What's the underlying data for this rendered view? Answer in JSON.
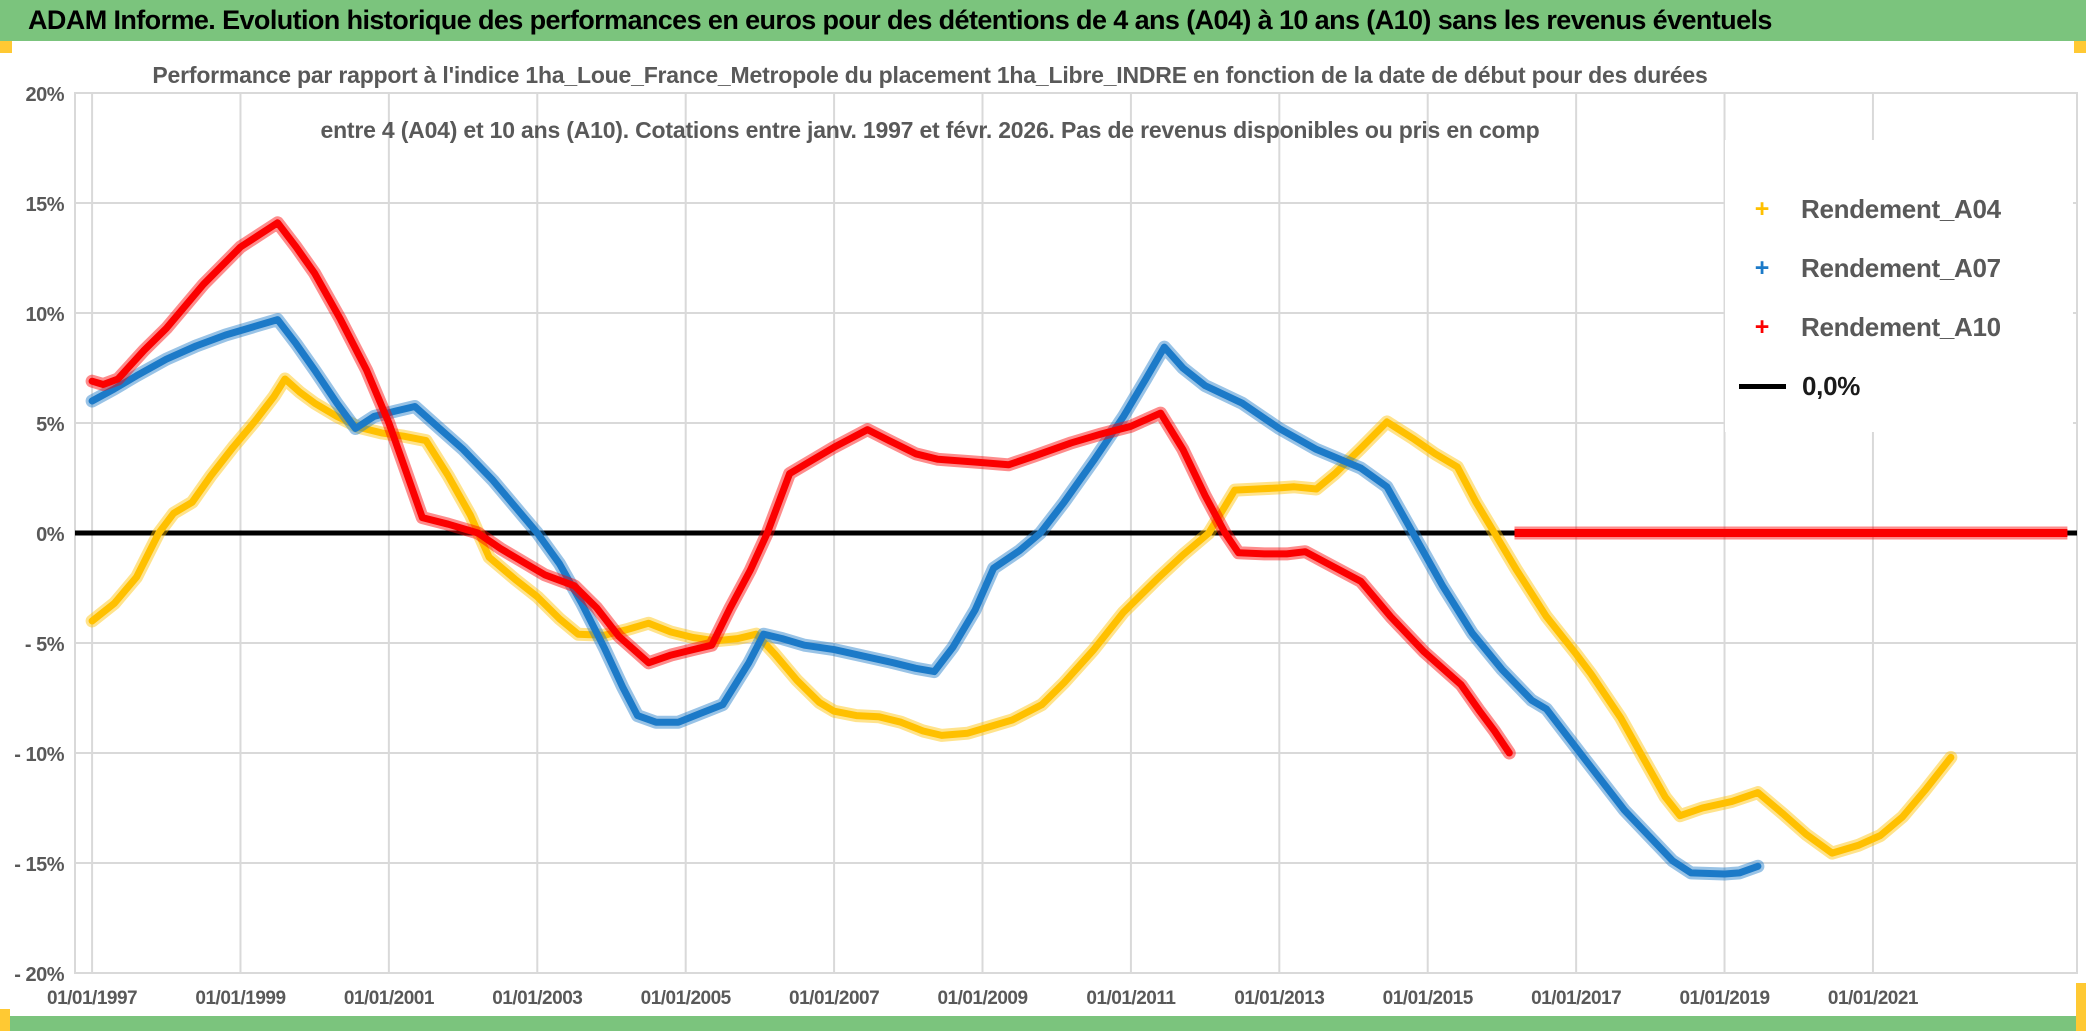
{
  "header": {
    "title": "ADAM Informe. Evolution historique des performances en euros pour des détentions de 4 ans (A04) à 10 ans (A10) sans les revenus éventuels"
  },
  "colors": {
    "header_bg": "#7BC47D",
    "accent_yellow": "#FFC933",
    "grid": "#D9D9D9",
    "axis_text": "#595959",
    "title_text": "#595959",
    "series_a04": "#FFC000",
    "series_a07": "#1C7AC8",
    "series_a10": "#FB0000",
    "zero_line": "#000000",
    "plot_bg": "#FFFFFF"
  },
  "chart_data": {
    "type": "line",
    "title_line1": "Performance par rapport à l'indice 1ha_Loue_France_Metropole  du placement 1ha_Libre_INDRE en fonction de la date de début pour des durées",
    "title_line2": "entre 4 (A04) et 10 ans (A10). Cotations entre janv. 1997 et févr. 2026. Pas de revenus disponibles ou pris en comp",
    "xlabel": "",
    "ylabel": "",
    "xlim": [
      1996.77,
      2023.75
    ],
    "ylim": [
      -20,
      20
    ],
    "grid": true,
    "legend_position": "upper-right",
    "x_tick_years": [
      1997,
      1999,
      2001,
      2003,
      2005,
      2007,
      2009,
      2011,
      2013,
      2015,
      2017,
      2019,
      2021
    ],
    "x_tick_labels": [
      "01/01/1997",
      "01/01/1999",
      "01/01/2001",
      "01/01/2003",
      "01/01/2005",
      "01/01/2007",
      "01/01/2009",
      "01/01/2011",
      "01/01/2013",
      "01/01/2015",
      "01/01/2017",
      "01/01/2019",
      "01/01/2021"
    ],
    "y_ticks": [
      {
        "value": 20,
        "label": "20%"
      },
      {
        "value": 15,
        "label": "15%"
      },
      {
        "value": 10,
        "label": "10%"
      },
      {
        "value": 5,
        "label": "5%"
      },
      {
        "value": 0,
        "label": "0%"
      },
      {
        "value": -5,
        "label": "- 5%"
      },
      {
        "value": -10,
        "label": "- 10%"
      },
      {
        "value": -15,
        "label": "- 15%"
      },
      {
        "value": -20,
        "label": "- 20%"
      }
    ],
    "zero_reference_line": {
      "label": "0,0%",
      "value": 0,
      "color": "#000000"
    },
    "legend": {
      "items": [
        {
          "label": "Rendement_A04",
          "marker": "plus",
          "color": "#FFC000"
        },
        {
          "label": "Rendement_A07",
          "marker": "plus",
          "color": "#1C7AC8"
        },
        {
          "label": "Rendement_A10",
          "marker": "plus",
          "color": "#FB0000"
        },
        {
          "label": "0,0%",
          "marker": "line",
          "color": "#000000"
        }
      ]
    },
    "series": [
      {
        "name": "Rendement_A04",
        "color": "#FFC000",
        "zero_segment": null,
        "points": [
          [
            1997.0,
            -4.0
          ],
          [
            1997.3,
            -3.2
          ],
          [
            1997.6,
            -2.0
          ],
          [
            1997.9,
            0.0
          ],
          [
            1998.1,
            0.9
          ],
          [
            1998.35,
            1.4
          ],
          [
            1998.6,
            2.6
          ],
          [
            1998.9,
            3.9
          ],
          [
            1999.2,
            5.1
          ],
          [
            1999.45,
            6.2
          ],
          [
            1999.6,
            7.0
          ],
          [
            1999.8,
            6.4
          ],
          [
            2000.0,
            5.9
          ],
          [
            2000.3,
            5.3
          ],
          [
            2000.6,
            4.8
          ],
          [
            2000.9,
            4.55
          ],
          [
            2001.2,
            4.4
          ],
          [
            2001.5,
            4.2
          ],
          [
            2001.8,
            2.6
          ],
          [
            2002.1,
            0.8
          ],
          [
            2002.35,
            -1.1
          ],
          [
            2002.7,
            -2.1
          ],
          [
            2003.0,
            -2.9
          ],
          [
            2003.3,
            -3.9
          ],
          [
            2003.55,
            -4.6
          ],
          [
            2003.9,
            -4.65
          ],
          [
            2004.2,
            -4.4
          ],
          [
            2004.5,
            -4.1
          ],
          [
            2004.8,
            -4.5
          ],
          [
            2005.1,
            -4.75
          ],
          [
            2005.4,
            -4.9
          ],
          [
            2005.7,
            -4.8
          ],
          [
            2005.95,
            -4.6
          ],
          [
            2006.2,
            -5.5
          ],
          [
            2006.5,
            -6.7
          ],
          [
            2006.8,
            -7.7
          ],
          [
            2007.0,
            -8.1
          ],
          [
            2007.3,
            -8.3
          ],
          [
            2007.6,
            -8.35
          ],
          [
            2007.9,
            -8.6
          ],
          [
            2008.2,
            -9.0
          ],
          [
            2008.45,
            -9.2
          ],
          [
            2008.8,
            -9.1
          ],
          [
            2009.1,
            -8.8
          ],
          [
            2009.4,
            -8.5
          ],
          [
            2009.8,
            -7.8
          ],
          [
            2010.1,
            -6.8
          ],
          [
            2010.5,
            -5.3
          ],
          [
            2010.9,
            -3.6
          ],
          [
            2011.35,
            -2.1
          ],
          [
            2011.7,
            -1.0
          ],
          [
            2012.05,
            0.0
          ],
          [
            2012.4,
            1.95
          ],
          [
            2012.7,
            2.0
          ],
          [
            2013.0,
            2.05
          ],
          [
            2013.2,
            2.1
          ],
          [
            2013.5,
            2.0
          ],
          [
            2013.75,
            2.7
          ],
          [
            2014.1,
            3.85
          ],
          [
            2014.45,
            5.05
          ],
          [
            2014.8,
            4.3
          ],
          [
            2015.1,
            3.6
          ],
          [
            2015.4,
            3.0
          ],
          [
            2015.65,
            1.4
          ],
          [
            2015.9,
            0.0
          ],
          [
            2016.2,
            -1.7
          ],
          [
            2016.6,
            -3.8
          ],
          [
            2017.0,
            -5.5
          ],
          [
            2017.2,
            -6.4
          ],
          [
            2017.6,
            -8.4
          ],
          [
            2017.9,
            -10.2
          ],
          [
            2018.2,
            -12.0
          ],
          [
            2018.4,
            -12.85
          ],
          [
            2018.7,
            -12.5
          ],
          [
            2019.1,
            -12.2
          ],
          [
            2019.45,
            -11.8
          ],
          [
            2019.8,
            -12.8
          ],
          [
            2020.1,
            -13.7
          ],
          [
            2020.45,
            -14.55
          ],
          [
            2020.8,
            -14.2
          ],
          [
            2021.1,
            -13.75
          ],
          [
            2021.4,
            -12.9
          ],
          [
            2021.7,
            -11.7
          ],
          [
            2022.05,
            -10.2
          ]
        ]
      },
      {
        "name": "Rendement_A07",
        "color": "#1C7AC8",
        "zero_segment": null,
        "points": [
          [
            1997.0,
            6.0
          ],
          [
            1997.3,
            6.55
          ],
          [
            1997.6,
            7.15
          ],
          [
            1998.0,
            7.9
          ],
          [
            1998.4,
            8.5
          ],
          [
            1998.8,
            9.0
          ],
          [
            1999.2,
            9.4
          ],
          [
            1999.5,
            9.7
          ],
          [
            1999.75,
            8.6
          ],
          [
            2000.0,
            7.4
          ],
          [
            2000.3,
            5.9
          ],
          [
            2000.55,
            4.75
          ],
          [
            2000.8,
            5.3
          ],
          [
            2001.1,
            5.55
          ],
          [
            2001.35,
            5.75
          ],
          [
            2001.7,
            4.7
          ],
          [
            2002.0,
            3.8
          ],
          [
            2002.4,
            2.4
          ],
          [
            2002.8,
            0.8
          ],
          [
            2003.0,
            0.0
          ],
          [
            2003.3,
            -1.4
          ],
          [
            2003.6,
            -3.2
          ],
          [
            2003.9,
            -5.2
          ],
          [
            2004.15,
            -7.0
          ],
          [
            2004.35,
            -8.3
          ],
          [
            2004.6,
            -8.6
          ],
          [
            2004.9,
            -8.6
          ],
          [
            2005.2,
            -8.2
          ],
          [
            2005.5,
            -7.8
          ],
          [
            2005.85,
            -5.9
          ],
          [
            2006.05,
            -4.6
          ],
          [
            2006.3,
            -4.8
          ],
          [
            2006.6,
            -5.1
          ],
          [
            2007.0,
            -5.3
          ],
          [
            2007.4,
            -5.6
          ],
          [
            2007.8,
            -5.9
          ],
          [
            2008.1,
            -6.15
          ],
          [
            2008.35,
            -6.3
          ],
          [
            2008.6,
            -5.2
          ],
          [
            2008.9,
            -3.5
          ],
          [
            2009.15,
            -1.6
          ],
          [
            2009.5,
            -0.8
          ],
          [
            2009.78,
            0.0
          ],
          [
            2010.1,
            1.4
          ],
          [
            2010.5,
            3.3
          ],
          [
            2010.9,
            5.3
          ],
          [
            2011.2,
            7.0
          ],
          [
            2011.45,
            8.45
          ],
          [
            2011.7,
            7.5
          ],
          [
            2012.0,
            6.7
          ],
          [
            2012.5,
            5.9
          ],
          [
            2013.0,
            4.75
          ],
          [
            2013.5,
            3.8
          ],
          [
            2014.1,
            2.95
          ],
          [
            2014.45,
            2.1
          ],
          [
            2014.8,
            0.0
          ],
          [
            2015.2,
            -2.4
          ],
          [
            2015.6,
            -4.55
          ],
          [
            2016.0,
            -6.2
          ],
          [
            2016.4,
            -7.6
          ],
          [
            2016.6,
            -8.0
          ],
          [
            2017.1,
            -10.2
          ],
          [
            2017.65,
            -12.6
          ],
          [
            2018.3,
            -14.9
          ],
          [
            2018.55,
            -15.45
          ],
          [
            2019.0,
            -15.5
          ],
          [
            2019.2,
            -15.45
          ],
          [
            2019.45,
            -15.15
          ]
        ]
      },
      {
        "name": "Rendement_A10",
        "color": "#FB0000",
        "zero_segment": [
          2016.17,
          2023.62
        ],
        "points": [
          [
            1997.0,
            6.9
          ],
          [
            1997.15,
            6.75
          ],
          [
            1997.35,
            7.0
          ],
          [
            1997.7,
            8.3
          ],
          [
            1998.0,
            9.3
          ],
          [
            1998.5,
            11.3
          ],
          [
            1999.0,
            13.0
          ],
          [
            1999.5,
            14.1
          ],
          [
            1999.75,
            13.0
          ],
          [
            2000.0,
            11.8
          ],
          [
            2000.35,
            9.7
          ],
          [
            2000.7,
            7.4
          ],
          [
            2001.0,
            5.0
          ],
          [
            2001.2,
            3.1
          ],
          [
            2001.45,
            0.7
          ],
          [
            2001.8,
            0.4
          ],
          [
            2002.2,
            0.0
          ],
          [
            2002.5,
            -0.7
          ],
          [
            2002.8,
            -1.3
          ],
          [
            2003.1,
            -1.9
          ],
          [
            2003.5,
            -2.4
          ],
          [
            2003.8,
            -3.4
          ],
          [
            2004.1,
            -4.7
          ],
          [
            2004.5,
            -5.9
          ],
          [
            2004.8,
            -5.55
          ],
          [
            2005.1,
            -5.3
          ],
          [
            2005.35,
            -5.1
          ],
          [
            2005.6,
            -3.4
          ],
          [
            2005.87,
            -1.7
          ],
          [
            2006.1,
            0.0
          ],
          [
            2006.4,
            2.7
          ],
          [
            2006.7,
            3.3
          ],
          [
            2007.0,
            3.9
          ],
          [
            2007.45,
            4.7
          ],
          [
            2007.8,
            4.1
          ],
          [
            2008.1,
            3.6
          ],
          [
            2008.4,
            3.35
          ],
          [
            2008.8,
            3.25
          ],
          [
            2009.0,
            3.2
          ],
          [
            2009.35,
            3.1
          ],
          [
            2009.7,
            3.5
          ],
          [
            2010.2,
            4.1
          ],
          [
            2010.6,
            4.5
          ],
          [
            2011.0,
            4.85
          ],
          [
            2011.4,
            5.45
          ],
          [
            2011.7,
            3.8
          ],
          [
            2012.0,
            1.7
          ],
          [
            2012.27,
            0.0
          ],
          [
            2012.45,
            -0.9
          ],
          [
            2012.8,
            -0.95
          ],
          [
            2013.1,
            -0.95
          ],
          [
            2013.35,
            -0.85
          ],
          [
            2013.6,
            -1.3
          ],
          [
            2014.1,
            -2.2
          ],
          [
            2014.5,
            -3.8
          ],
          [
            2014.95,
            -5.4
          ],
          [
            2015.45,
            -6.9
          ],
          [
            2015.7,
            -8.1
          ],
          [
            2015.9,
            -9.0
          ],
          [
            2016.1,
            -10.0
          ]
        ]
      }
    ]
  }
}
